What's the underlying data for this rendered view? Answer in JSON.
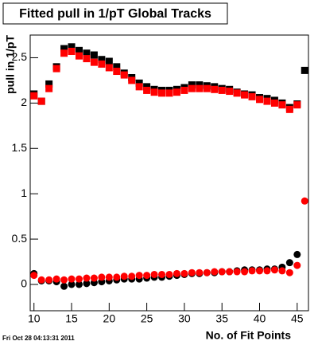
{
  "chart_data": {
    "type": "scatter",
    "title": "Fitted pull in 1/pT  Global Tracks",
    "x_label": "No. of Fit Points",
    "y_label": "pull in 1/pT",
    "footer": "Fri Oct 28 04:13:31 2011",
    "x": [
      10,
      11,
      12,
      13,
      14,
      15,
      16,
      17,
      18,
      19,
      20,
      21,
      22,
      23,
      24,
      25,
      26,
      27,
      28,
      29,
      30,
      31,
      32,
      33,
      34,
      35,
      36,
      37,
      38,
      39,
      40,
      41,
      42,
      43,
      44,
      45,
      46
    ],
    "series": [
      {
        "color": "#000000",
        "marker": "square",
        "values": [
          2.1,
          2.02,
          2.21,
          2.4,
          2.6,
          2.62,
          2.58,
          2.55,
          2.53,
          2.48,
          2.46,
          2.4,
          2.33,
          2.28,
          2.22,
          2.18,
          2.15,
          2.14,
          2.14,
          2.15,
          2.17,
          2.2,
          2.2,
          2.19,
          2.18,
          2.16,
          2.15,
          2.12,
          2.1,
          2.09,
          2.06,
          2.05,
          2.03,
          2.0,
          1.95,
          1.99,
          2.36
        ]
      },
      {
        "color": "#ff0000",
        "marker": "square",
        "values": [
          2.08,
          2.02,
          2.16,
          2.38,
          2.55,
          2.57,
          2.52,
          2.49,
          2.45,
          2.43,
          2.39,
          2.35,
          2.31,
          2.25,
          2.18,
          2.14,
          2.12,
          2.11,
          2.11,
          2.12,
          2.14,
          2.16,
          2.16,
          2.16,
          2.15,
          2.14,
          2.13,
          2.11,
          2.09,
          2.07,
          2.04,
          2.02,
          2.0,
          1.98,
          1.93,
          1.98,
          null
        ]
      },
      {
        "color": "#000000",
        "marker": "circle",
        "values": [
          0.12,
          0.04,
          0.04,
          0.03,
          -0.02,
          0.0,
          0.0,
          0.01,
          0.02,
          0.03,
          0.04,
          0.05,
          0.06,
          0.06,
          0.06,
          0.07,
          0.08,
          0.08,
          0.09,
          0.1,
          0.11,
          0.12,
          0.12,
          0.13,
          0.13,
          0.14,
          0.14,
          0.15,
          0.16,
          0.16,
          0.16,
          0.17,
          0.17,
          0.19,
          0.24,
          0.33,
          null
        ]
      },
      {
        "color": "#ff0000",
        "marker": "circle",
        "values": [
          0.1,
          0.05,
          0.05,
          0.06,
          0.05,
          0.06,
          0.06,
          0.07,
          0.07,
          0.08,
          0.08,
          0.08,
          0.09,
          0.09,
          0.1,
          0.1,
          0.11,
          0.11,
          0.11,
          0.12,
          0.12,
          0.13,
          0.13,
          0.13,
          0.14,
          0.14,
          0.14,
          0.14,
          0.14,
          0.15,
          0.15,
          0.15,
          0.16,
          0.15,
          0.13,
          0.21,
          0.92
        ]
      }
    ],
    "xlim": [
      9.5,
      46.5
    ],
    "ylim": [
      -0.29,
      2.75
    ],
    "xticks": [
      10,
      15,
      20,
      25,
      30,
      35,
      40,
      45
    ],
    "yticks": [
      0,
      0.5,
      1,
      1.5,
      2,
      2.5
    ],
    "grid": false
  }
}
